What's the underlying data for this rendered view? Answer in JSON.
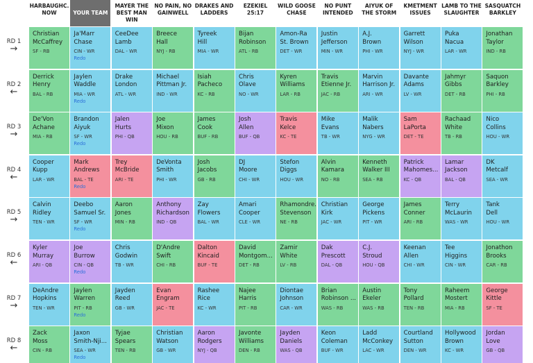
{
  "colors": {
    "RB": "#7fd79a",
    "WR": "#80d3ec",
    "QB": "#c6a4f2",
    "TE": "#f4909e"
  },
  "teams": [
    "HARBAUGHC. NOW",
    "YOUR TEAM",
    "MAYER THE BEST MAN WIN",
    "NO PAIN, NO GAINWELL",
    "DRAKES AND LADDERS",
    "EZEKIEL 25:17",
    "WILD GOOSE CHASE",
    "NO PUNT INTENDED",
    "AIYUK OF THE STORM",
    "KMETMENT ISSUES",
    "LAMB TO THE SLAUGHTER",
    "SASQUATCH BARKLEY"
  ],
  "my_team_index": 1,
  "rounds": [
    {
      "label": "RD 1",
      "arrow": "→",
      "picks": [
        {
          "first": "Christian",
          "last": "McCaffrey",
          "info": "SF - RB"
        },
        {
          "first": "Ja'Marr",
          "last": "Chase",
          "info": "CIN - WR",
          "redo": "Redo"
        },
        {
          "first": "CeeDee",
          "last": "Lamb",
          "info": "DAL - WR"
        },
        {
          "first": "Breece",
          "last": "Hall",
          "info": "NYJ - RB"
        },
        {
          "first": "Tyreek",
          "last": "Hill",
          "info": "MIA - WR"
        },
        {
          "first": "Bijan",
          "last": "Robinson",
          "info": "ATL - RB"
        },
        {
          "first": "Amon-Ra",
          "last": "St. Brown",
          "info": "DET - WR"
        },
        {
          "first": "Justin",
          "last": "Jefferson",
          "info": "MIN - WR"
        },
        {
          "first": "A.J.",
          "last": "Brown",
          "info": "PHI - WR"
        },
        {
          "first": "Garrett",
          "last": "Wilson",
          "info": "NYJ - WR"
        },
        {
          "first": "Puka",
          "last": "Nacua",
          "info": "LAR - WR"
        },
        {
          "first": "Jonathan",
          "last": "Taylor",
          "info": "IND - RB"
        }
      ]
    },
    {
      "label": "RD 2",
      "arrow": "←",
      "picks": [
        {
          "first": "Derrick",
          "last": "Henry",
          "info": "BAL - RB"
        },
        {
          "first": "Jaylen",
          "last": "Waddle",
          "info": "MIA - WR",
          "redo": "Redo"
        },
        {
          "first": "Drake",
          "last": "London",
          "info": "ATL - WR"
        },
        {
          "first": "Michael",
          "last": "Pittman Jr.",
          "info": "IND - WR"
        },
        {
          "first": "Isiah",
          "last": "Pacheco",
          "info": "KC - RB"
        },
        {
          "first": "Chris",
          "last": "Olave",
          "info": "NO - WR"
        },
        {
          "first": "Kyren",
          "last": "Williams",
          "info": "LAR - RB"
        },
        {
          "first": "Travis",
          "last": "Etienne Jr.",
          "info": "JAC - RB"
        },
        {
          "first": "Marvin",
          "last": "Harrison Jr.",
          "info": "ARI - WR"
        },
        {
          "first": "Davante",
          "last": "Adams",
          "info": "LV - WR"
        },
        {
          "first": "Jahmyr",
          "last": "Gibbs",
          "info": "DET - RB"
        },
        {
          "first": "Saquon",
          "last": "Barkley",
          "info": "PHI - RB"
        }
      ]
    },
    {
      "label": "RD 3",
      "arrow": "→",
      "picks": [
        {
          "first": "De'Von",
          "last": "Achane",
          "info": "MIA - RB"
        },
        {
          "first": "Brandon",
          "last": "Aiyuk",
          "info": "SF - WR",
          "redo": "Redo"
        },
        {
          "first": "Jalen",
          "last": "Hurts",
          "info": "PHI - QB"
        },
        {
          "first": "Joe",
          "last": "Mixon",
          "info": "HOU - RB"
        },
        {
          "first": "James",
          "last": "Cook",
          "info": "BUF - RB"
        },
        {
          "first": "Josh",
          "last": "Allen",
          "info": "BUF - QB"
        },
        {
          "first": "Travis",
          "last": "Kelce",
          "info": "KC - TE"
        },
        {
          "first": "Mike",
          "last": "Evans",
          "info": "TB - WR"
        },
        {
          "first": "Malik",
          "last": "Nabers",
          "info": "NYG - WR"
        },
        {
          "first": "Sam",
          "last": "LaPorta",
          "info": "DET - TE"
        },
        {
          "first": "Rachaad",
          "last": "White",
          "info": "TB - RB"
        },
        {
          "first": "Nico",
          "last": "Collins",
          "info": "HOU - WR"
        }
      ]
    },
    {
      "label": "RD 4",
      "arrow": "←",
      "picks": [
        {
          "first": "Cooper",
          "last": "Kupp",
          "info": "LAR - WR"
        },
        {
          "first": "Mark",
          "last": "Andrews",
          "info": "BAL - TE",
          "redo": "Redo"
        },
        {
          "first": "Trey",
          "last": "McBride",
          "info": "ARI - TE"
        },
        {
          "first": "DeVonta",
          "last": "Smith",
          "info": "PHI - WR"
        },
        {
          "first": "Josh",
          "last": "Jacobs",
          "info": "GB - RB"
        },
        {
          "first": "DJ",
          "last": "Moore",
          "info": "CHI - WR"
        },
        {
          "first": "Stefon",
          "last": "Diggs",
          "info": "HOU - WR"
        },
        {
          "first": "Alvin",
          "last": "Kamara",
          "info": "NO - RB"
        },
        {
          "first": "Kenneth",
          "last": "Walker III",
          "info": "SEA - RB"
        },
        {
          "first": "Patrick",
          "last": "Mahomes...",
          "info": "KC - QB"
        },
        {
          "first": "Lamar",
          "last": "Jackson",
          "info": "BAL - QB"
        },
        {
          "first": "DK",
          "last": "Metcalf",
          "info": "SEA - WR"
        }
      ]
    },
    {
      "label": "RD 5",
      "arrow": "→",
      "picks": [
        {
          "first": "Calvin",
          "last": "Ridley",
          "info": "TEN - WR"
        },
        {
          "first": "Deebo",
          "last": "Samuel Sr.",
          "info": "SF - WR",
          "redo": "Redo"
        },
        {
          "first": "Aaron",
          "last": "Jones",
          "info": "MIN - RB"
        },
        {
          "first": "Anthony",
          "last": "Richardson",
          "info": "IND - QB"
        },
        {
          "first": "Zay",
          "last": "Flowers",
          "info": "BAL - WR"
        },
        {
          "first": "Amari",
          "last": "Cooper",
          "info": "CLE - WR"
        },
        {
          "first": "Rhamondre...",
          "last": "Stevenson",
          "info": "NE - RB"
        },
        {
          "first": "Christian",
          "last": "Kirk",
          "info": "JAC - WR"
        },
        {
          "first": "George",
          "last": "Pickens",
          "info": "PIT - WR"
        },
        {
          "first": "James",
          "last": "Conner",
          "info": "ARI - RB"
        },
        {
          "first": "Terry",
          "last": "McLaurin",
          "info": "WAS - WR"
        },
        {
          "first": "Tank",
          "last": "Dell",
          "info": "HOU - WR"
        }
      ]
    },
    {
      "label": "RD 6",
      "arrow": "←",
      "picks": [
        {
          "first": "Kyler",
          "last": "Murray",
          "info": "ARI - QB"
        },
        {
          "first": "Joe",
          "last": "Burrow",
          "info": "CIN - QB",
          "redo": "Redo"
        },
        {
          "first": "Chris",
          "last": "Godwin",
          "info": "TB - WR"
        },
        {
          "first": "D'Andre",
          "last": "Swift",
          "info": "CHI - RB"
        },
        {
          "first": "Dalton",
          "last": "Kincaid",
          "info": "BUF - TE"
        },
        {
          "first": "David",
          "last": "Montgom...",
          "info": "DET - RB"
        },
        {
          "first": "Zamir",
          "last": "White",
          "info": "LV - RB"
        },
        {
          "first": "Dak",
          "last": "Prescott",
          "info": "DAL - QB"
        },
        {
          "first": "C.J.",
          "last": "Stroud",
          "info": "HOU - QB"
        },
        {
          "first": "Keenan",
          "last": "Allen",
          "info": "CHI - WR"
        },
        {
          "first": "Tee",
          "last": "Higgins",
          "info": "CIN - WR"
        },
        {
          "first": "Jonathon",
          "last": "Brooks",
          "info": "CAR - RB"
        }
      ]
    },
    {
      "label": "RD 7",
      "arrow": "→",
      "picks": [
        {
          "first": "DeAndre",
          "last": "Hopkins",
          "info": "TEN - WR"
        },
        {
          "first": "Jaylen",
          "last": "Warren",
          "info": "PIT - RB",
          "redo": "Redo"
        },
        {
          "first": "Jayden",
          "last": "Reed",
          "info": "GB - WR"
        },
        {
          "first": "Evan",
          "last": "Engram",
          "info": "JAC - TE"
        },
        {
          "first": "Rashee",
          "last": "Rice",
          "info": "KC - WR"
        },
        {
          "first": "Najee",
          "last": "Harris",
          "info": "PIT - RB"
        },
        {
          "first": "Diontae",
          "last": "Johnson",
          "info": "CAR - WR"
        },
        {
          "first": "Brian",
          "last": "Robinson ...",
          "info": "WAS - RB"
        },
        {
          "first": "Austin",
          "last": "Ekeler",
          "info": "WAS - RB"
        },
        {
          "first": "Tony",
          "last": "Pollard",
          "info": "TEN - RB"
        },
        {
          "first": "Raheem",
          "last": "Mostert",
          "info": "MIA - RB"
        },
        {
          "first": "George",
          "last": "Kittle",
          "info": "SF - TE"
        }
      ]
    },
    {
      "label": "RD 8",
      "arrow": "←",
      "picks": [
        {
          "first": "Zack",
          "last": "Moss",
          "info": "CIN - RB"
        },
        {
          "first": "Jaxon",
          "last": "Smith-Nji...",
          "info": "SEA - WR",
          "redo": "Redo"
        },
        {
          "first": "Tyjae",
          "last": "Spears",
          "info": "TEN - RB"
        },
        {
          "first": "Christian",
          "last": "Watson",
          "info": "GB - WR"
        },
        {
          "first": "Aaron",
          "last": "Rodgers",
          "info": "NYJ - QB"
        },
        {
          "first": "Javonte",
          "last": "Williams",
          "info": "DEN - RB"
        },
        {
          "first": "Jayden",
          "last": "Daniels",
          "info": "WAS - QB"
        },
        {
          "first": "Keon",
          "last": "Coleman",
          "info": "BUF - WR"
        },
        {
          "first": "Ladd",
          "last": "McConkey",
          "info": "LAC - WR"
        },
        {
          "first": "Courtland",
          "last": "Sutton",
          "info": "DEN - WR"
        },
        {
          "first": "Hollywood",
          "last": "Brown",
          "info": "KC - WR"
        },
        {
          "first": "Jordan",
          "last": "Love",
          "info": "GB - QB"
        }
      ]
    }
  ]
}
